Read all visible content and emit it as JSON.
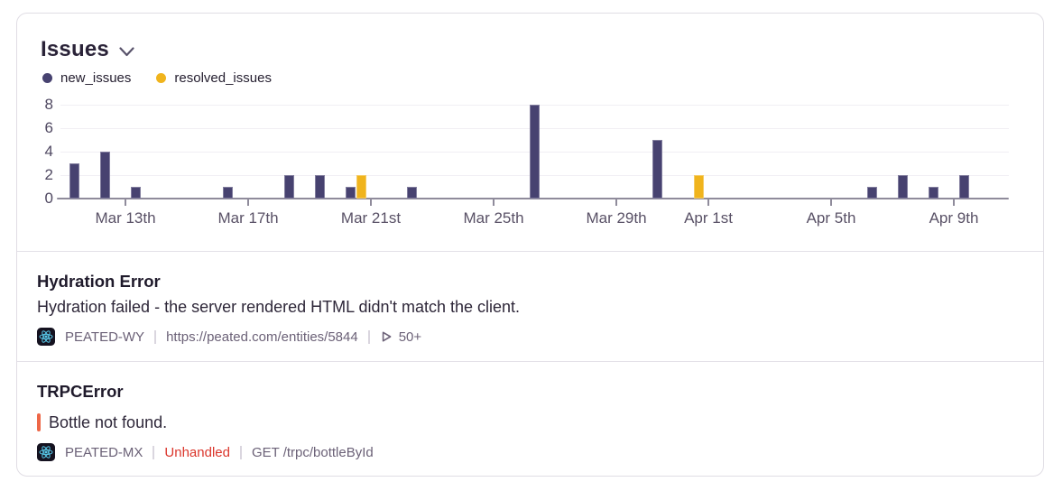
{
  "widget": {
    "title": "Issues"
  },
  "legend": [
    {
      "label": "new_issues",
      "color": "#474270"
    },
    {
      "label": "resolved_issues",
      "color": "#f0b41d"
    }
  ],
  "chart_data": {
    "type": "bar",
    "title": "Issues",
    "xlabel": "",
    "ylabel": "",
    "grid": "horizontal",
    "legend_position": "top-left",
    "ylim": [
      0,
      8
    ],
    "y_ticks": [
      0,
      2,
      4,
      6,
      8
    ],
    "categories": [
      "Mar 11",
      "Mar 12",
      "Mar 13",
      "Mar 14",
      "Mar 15",
      "Mar 16",
      "Mar 17",
      "Mar 18",
      "Mar 19",
      "Mar 20",
      "Mar 21",
      "Mar 22",
      "Mar 23",
      "Mar 24",
      "Mar 25",
      "Mar 26",
      "Mar 27",
      "Mar 28",
      "Mar 29",
      "Mar 30",
      "Mar 31",
      "Apr 1",
      "Apr 2",
      "Apr 3",
      "Apr 4",
      "Apr 5",
      "Apr 6",
      "Apr 7",
      "Apr 8",
      "Apr 9",
      "Apr 10"
    ],
    "series": [
      {
        "name": "new_issues",
        "color": "#474270",
        "values": [
          3,
          4,
          1,
          0,
          0,
          1,
          0,
          2,
          2,
          1,
          0,
          1,
          0,
          0,
          0,
          8,
          0,
          0,
          0,
          5,
          0,
          0,
          0,
          0,
          0,
          0,
          1,
          2,
          1,
          2,
          0
        ]
      },
      {
        "name": "resolved_issues",
        "color": "#f0b41d",
        "values": [
          0,
          0,
          0,
          0,
          0,
          0,
          0,
          0,
          0,
          2,
          0,
          0,
          0,
          0,
          0,
          0,
          0,
          0,
          0,
          0,
          2,
          0,
          0,
          0,
          0,
          0,
          0,
          0,
          0,
          0,
          0
        ]
      }
    ],
    "x_tick_labels": [
      {
        "label": "Mar 13th",
        "day_index": 2
      },
      {
        "label": "Mar 17th",
        "day_index": 6
      },
      {
        "label": "Mar 21st",
        "day_index": 10
      },
      {
        "label": "Mar 25th",
        "day_index": 14
      },
      {
        "label": "Mar 29th",
        "day_index": 18
      },
      {
        "label": "Apr 1st",
        "day_index": 21
      },
      {
        "label": "Apr 5th",
        "day_index": 25
      },
      {
        "label": "Apr 9th",
        "day_index": 29
      }
    ]
  },
  "issues": [
    {
      "title": "Hydration Error",
      "message": "Hydration failed - the server rendered HTML didn't match the client.",
      "project": "PEATED-WY",
      "url": "https://peated.com/entities/5844",
      "replay_count": "50+"
    },
    {
      "title": "TRPCError",
      "message": "Bottle not found.",
      "project": "PEATED-MX",
      "tag": "Unhandled",
      "transaction": "GET /trpc/bottleById"
    }
  ]
}
